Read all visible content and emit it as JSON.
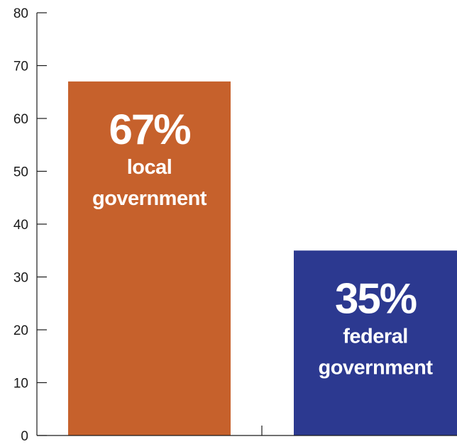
{
  "chart_data": {
    "type": "bar",
    "categories": [
      "local government",
      "federal government"
    ],
    "values": [
      67,
      35
    ],
    "ylim": [
      0,
      80
    ],
    "yticks": [
      0,
      10,
      20,
      30,
      40,
      50,
      60,
      70,
      80
    ],
    "bars": [
      {
        "value": 67,
        "pct_label": "67%",
        "name_lines": [
          "local",
          "government"
        ],
        "color": "#c6612c"
      },
      {
        "value": 35,
        "pct_label": "35%",
        "name_lines": [
          "federal",
          "government"
        ],
        "color": "#2c3990"
      }
    ],
    "grid": false,
    "legend": "none"
  },
  "colors": {
    "axis": "#1a1a1a",
    "bar_text": "#ffffff",
    "background": "#ffffff"
  }
}
